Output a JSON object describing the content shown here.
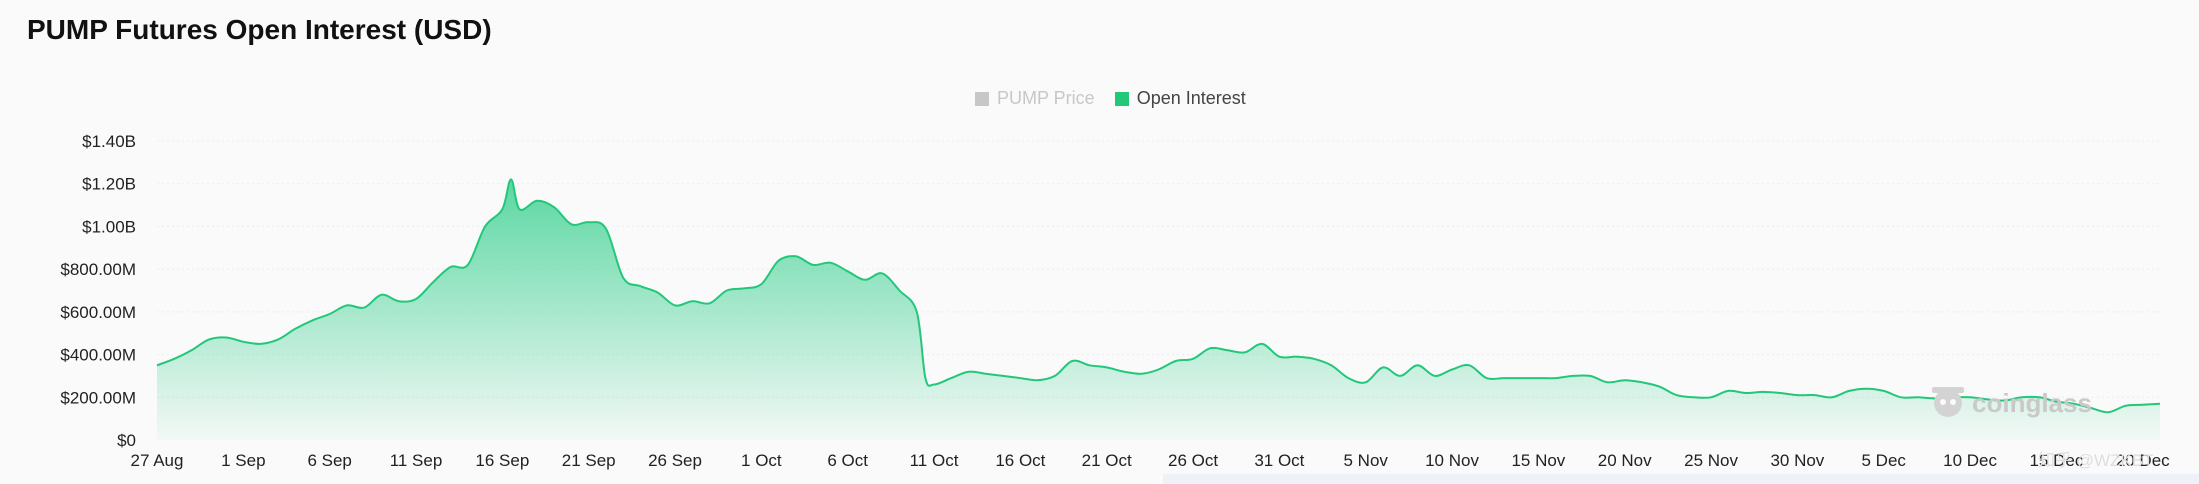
{
  "page": {
    "title": "PUMP Futures Open Interest (USD)"
  },
  "legend": {
    "items": [
      {
        "label": "PUMP Price",
        "color": "#c7c7c7",
        "active": false
      },
      {
        "label": "Open Interest",
        "color": "#22c77a",
        "active": true
      }
    ]
  },
  "watermark": {
    "text": "coinglass",
    "credit": "知乎 @WZKBT"
  },
  "colors": {
    "line": "#22c77a",
    "area_top": "#3fd193",
    "grid": "#ececec"
  },
  "chart_data": {
    "type": "area",
    "title": "PUMP Futures Open Interest (USD)",
    "series": [
      {
        "name": "Open Interest",
        "unit": "USD",
        "points": [
          [
            "27 Aug",
            350000000
          ],
          [
            "28 Aug",
            380000000
          ],
          [
            "29 Aug",
            420000000
          ],
          [
            "30 Aug",
            470000000
          ],
          [
            "31 Aug",
            480000000
          ],
          [
            "1 Sep",
            460000000
          ],
          [
            "2 Sep",
            450000000
          ],
          [
            "3 Sep",
            470000000
          ],
          [
            "4 Sep",
            520000000
          ],
          [
            "5 Sep",
            560000000
          ],
          [
            "6 Sep",
            590000000
          ],
          [
            "7 Sep",
            630000000
          ],
          [
            "8 Sep",
            620000000
          ],
          [
            "9 Sep",
            680000000
          ],
          [
            "10 Sep",
            650000000
          ],
          [
            "11 Sep",
            660000000
          ],
          [
            "12 Sep",
            740000000
          ],
          [
            "13 Sep",
            810000000
          ],
          [
            "14 Sep",
            820000000
          ],
          [
            "15 Sep",
            1000000000
          ],
          [
            "16 Sep",
            1080000000
          ],
          [
            "16.5 Sep",
            1220000000
          ],
          [
            "17 Sep",
            1080000000
          ],
          [
            "18 Sep",
            1120000000
          ],
          [
            "19 Sep",
            1090000000
          ],
          [
            "20 Sep",
            1010000000
          ],
          [
            "21 Sep",
            1020000000
          ],
          [
            "22 Sep",
            990000000
          ],
          [
            "23 Sep",
            760000000
          ],
          [
            "24 Sep",
            720000000
          ],
          [
            "25 Sep",
            690000000
          ],
          [
            "26 Sep",
            630000000
          ],
          [
            "27 Sep",
            650000000
          ],
          [
            "28 Sep",
            640000000
          ],
          [
            "29 Sep",
            700000000
          ],
          [
            "30 Sep",
            710000000
          ],
          [
            "1 Oct",
            730000000
          ],
          [
            "2 Oct",
            840000000
          ],
          [
            "3 Oct",
            860000000
          ],
          [
            "4 Oct",
            820000000
          ],
          [
            "5 Oct",
            830000000
          ],
          [
            "6 Oct",
            790000000
          ],
          [
            "7 Oct",
            750000000
          ],
          [
            "8 Oct",
            780000000
          ],
          [
            "9 Oct",
            700000000
          ],
          [
            "10 Oct",
            600000000
          ],
          [
            "10.5 Oct",
            290000000
          ],
          [
            "11 Oct",
            260000000
          ],
          [
            "12 Oct",
            290000000
          ],
          [
            "13 Oct",
            320000000
          ],
          [
            "14 Oct",
            310000000
          ],
          [
            "15 Oct",
            300000000
          ],
          [
            "16 Oct",
            290000000
          ],
          [
            "17 Oct",
            280000000
          ],
          [
            "18 Oct",
            300000000
          ],
          [
            "19 Oct",
            370000000
          ],
          [
            "20 Oct",
            350000000
          ],
          [
            "21 Oct",
            340000000
          ],
          [
            "22 Oct",
            320000000
          ],
          [
            "23 Oct",
            310000000
          ],
          [
            "24 Oct",
            330000000
          ],
          [
            "25 Oct",
            370000000
          ],
          [
            "26 Oct",
            380000000
          ],
          [
            "27 Oct",
            430000000
          ],
          [
            "28 Oct",
            420000000
          ],
          [
            "29 Oct",
            410000000
          ],
          [
            "30 Oct",
            450000000
          ],
          [
            "31 Oct",
            390000000
          ],
          [
            "1 Nov",
            390000000
          ],
          [
            "2 Nov",
            380000000
          ],
          [
            "3 Nov",
            350000000
          ],
          [
            "4 Nov",
            290000000
          ],
          [
            "5 Nov",
            270000000
          ],
          [
            "6 Nov",
            340000000
          ],
          [
            "7 Nov",
            300000000
          ],
          [
            "8 Nov",
            350000000
          ],
          [
            "9 Nov",
            300000000
          ],
          [
            "10 Nov",
            330000000
          ],
          [
            "11 Nov",
            350000000
          ],
          [
            "12 Nov",
            290000000
          ],
          [
            "13 Nov",
            290000000
          ],
          [
            "14 Nov",
            290000000
          ],
          [
            "15 Nov",
            290000000
          ],
          [
            "16 Nov",
            290000000
          ],
          [
            "17 Nov",
            300000000
          ],
          [
            "18 Nov",
            300000000
          ],
          [
            "19 Nov",
            270000000
          ],
          [
            "20 Nov",
            280000000
          ],
          [
            "21 Nov",
            270000000
          ],
          [
            "22 Nov",
            250000000
          ],
          [
            "23 Nov",
            210000000
          ],
          [
            "24 Nov",
            200000000
          ],
          [
            "25 Nov",
            200000000
          ],
          [
            "26 Nov",
            230000000
          ],
          [
            "27 Nov",
            220000000
          ],
          [
            "28 Nov",
            225000000
          ],
          [
            "29 Nov",
            220000000
          ],
          [
            "30 Nov",
            210000000
          ],
          [
            "1 Dec",
            210000000
          ],
          [
            "2 Dec",
            200000000
          ],
          [
            "3 Dec",
            230000000
          ],
          [
            "4 Dec",
            240000000
          ],
          [
            "5 Dec",
            230000000
          ],
          [
            "6 Dec",
            200000000
          ],
          [
            "7 Dec",
            200000000
          ],
          [
            "8 Dec",
            195000000
          ],
          [
            "9 Dec",
            200000000
          ],
          [
            "10 Dec",
            200000000
          ],
          [
            "11 Dec",
            190000000
          ],
          [
            "12 Dec",
            185000000
          ],
          [
            "13 Dec",
            200000000
          ],
          [
            "14 Dec",
            200000000
          ],
          [
            "15 Dec",
            180000000
          ],
          [
            "16 Dec",
            170000000
          ],
          [
            "17 Dec",
            150000000
          ],
          [
            "18 Dec",
            130000000
          ],
          [
            "19 Dec",
            160000000
          ],
          [
            "20 Dec",
            165000000
          ],
          [
            "21 Dec",
            170000000
          ]
        ]
      },
      {
        "name": "PUMP Price",
        "hidden": true
      }
    ],
    "x_ticks": [
      "27 Aug",
      "1 Sep",
      "6 Sep",
      "11 Sep",
      "16 Sep",
      "21 Sep",
      "26 Sep",
      "1 Oct",
      "6 Oct",
      "11 Oct",
      "16 Oct",
      "21 Oct",
      "26 Oct",
      "31 Oct",
      "5 Nov",
      "10 Nov",
      "15 Nov",
      "20 Nov",
      "25 Nov",
      "30 Nov",
      "5 Dec",
      "10 Dec",
      "15 Dec",
      "20 Dec"
    ],
    "y_ticks": [
      "$0",
      "$200.00M",
      "$400.00M",
      "$600.00M",
      "$800.00M",
      "$1.00B",
      "$1.20B",
      "$1.40B"
    ],
    "ylim": [
      0,
      1400000000
    ],
    "grid": true,
    "legend_position": "top-center"
  }
}
